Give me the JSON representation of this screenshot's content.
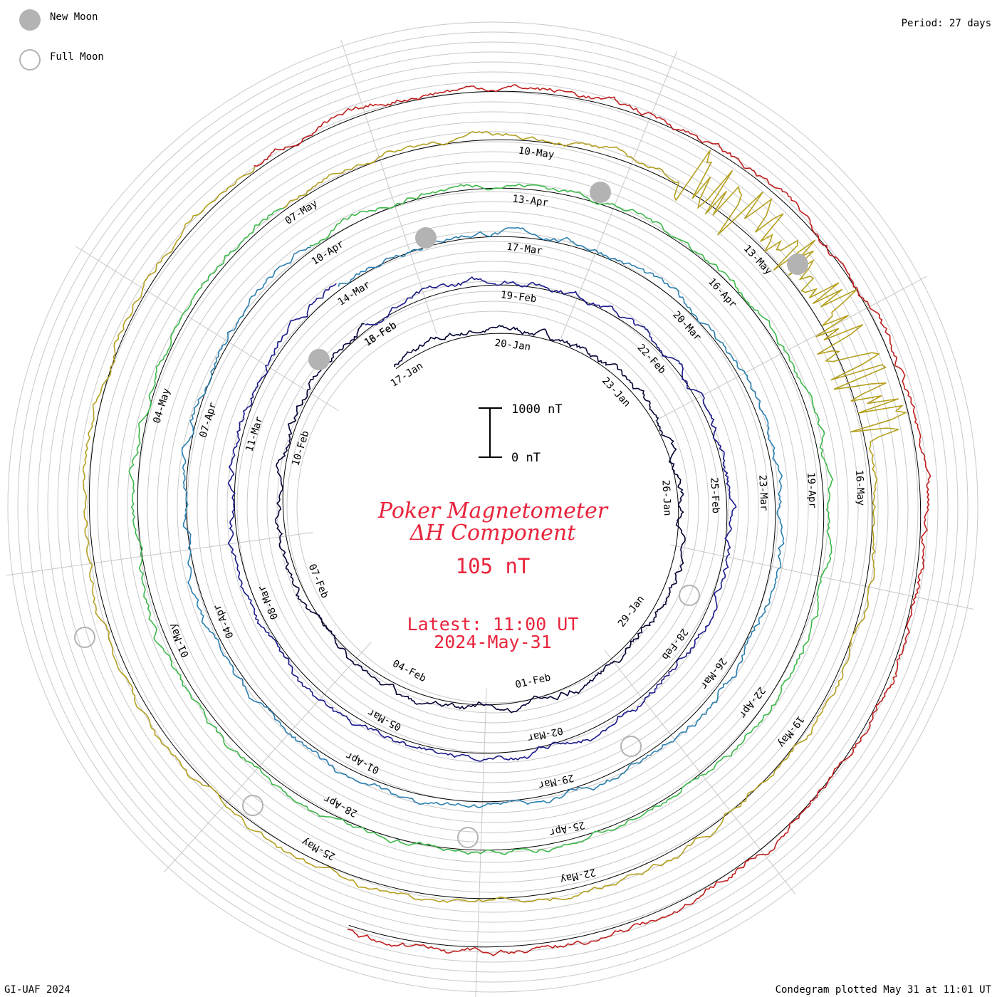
{
  "legend": {
    "new_moon": "New Moon",
    "full_moon": "Full Moon"
  },
  "period": "Period: 27 days",
  "footer_left": "GI-UAF 2024",
  "footer_right": "Condegram plotted May 31 at 11:01 UT",
  "scale": {
    "top": "1000 nT",
    "bottom": "0 nT"
  },
  "title_line1": "Poker Magnetometer",
  "title_line2": "ΔH Component",
  "value": "105 nT",
  "latest_time": "Latest: 11:00 UT",
  "latest_date": "2024-May-31",
  "colors": {
    "title": "#e8243c",
    "new_moon": "#b3b3b3",
    "full_moon": "#b3b3b3",
    "grid": "#c8c8c8"
  },
  "chart_data": {
    "type": "condegram",
    "period_days": 27,
    "units": "nT",
    "scale_nT": [
      0,
      1000
    ],
    "rotations": [
      {
        "color": "#000033",
        "dates": [
          "17-Jan",
          "20-Jan",
          "23-Jan",
          "26-Jan",
          "29-Jan",
          "01-Feb",
          "04-Feb",
          "07-Feb",
          "10-Feb",
          "13-Feb"
        ]
      },
      {
        "color": "#1a1a8c",
        "dates": [
          "16-Feb",
          "19-Feb",
          "22-Feb",
          "25-Feb",
          "28-Feb",
          "02-Mar",
          "05-Mar",
          "08-Mar",
          "11-Mar"
        ]
      },
      {
        "color": "#2a7fb0",
        "dates": [
          "14-Mar",
          "17-Mar",
          "20-Mar",
          "23-Mar",
          "26-Mar",
          "29-Mar",
          "01-Apr",
          "04-Apr",
          "07-Apr"
        ]
      },
      {
        "color": "#3cb84a",
        "dates": [
          "10-Apr",
          "13-Apr",
          "16-Apr",
          "19-Apr",
          "22-Apr",
          "25-Apr",
          "28-Apr",
          "01-May",
          "04-May"
        ]
      },
      {
        "color": "#b5a020",
        "dates": [
          "07-May",
          "10-May",
          "13-May",
          "16-May",
          "19-May",
          "22-May",
          "25-May"
        ]
      },
      {
        "color": "#c0201e",
        "dates": []
      }
    ],
    "new_moons": [
      "10-Feb",
      "10-Mar",
      "08-Apr",
      "08-May"
    ],
    "full_moons": [
      "25-Jan",
      "24-Feb",
      "25-Mar",
      "23-Apr",
      "23-May"
    ]
  }
}
